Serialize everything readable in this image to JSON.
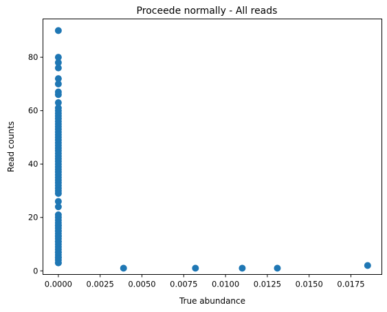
{
  "chart_data": {
    "type": "scatter",
    "title": "Proceede normally - All reads",
    "xlabel": "True abundance",
    "ylabel": "Read counts",
    "xlim": [
      -0.00092,
      0.01935
    ],
    "ylim": [
      -1.35,
      94.35
    ],
    "xticks": [
      0.0,
      0.0025,
      0.005,
      0.0075,
      0.01,
      0.0125,
      0.015,
      0.0175
    ],
    "xtick_labels": [
      "0.0000",
      "0.0025",
      "0.0050",
      "0.0075",
      "0.0100",
      "0.0125",
      "0.0150",
      "0.0175"
    ],
    "yticks": [
      0,
      20,
      40,
      60,
      80
    ],
    "ytick_labels": [
      "0",
      "20",
      "40",
      "60",
      "80"
    ],
    "grid": false,
    "marker_color": "#1f77b4",
    "series": [
      {
        "x": [
          0,
          0,
          0,
          0,
          0,
          0,
          0,
          0,
          0,
          0,
          0,
          0,
          0,
          0,
          0,
          0,
          0,
          0,
          0,
          0,
          0,
          0,
          0,
          0,
          0,
          0,
          0,
          0,
          0,
          0,
          0,
          0,
          0,
          0,
          0,
          0,
          0,
          0,
          0,
          0,
          0,
          0,
          0,
          0,
          0,
          0,
          0,
          0,
          0,
          0,
          0,
          0,
          0,
          0,
          0,
          0,
          0,
          0,
          0,
          0,
          0,
          0,
          0,
          0,
          0,
          0,
          0,
          0,
          0,
          0,
          0.0039,
          0.0082,
          0.011,
          0.0131,
          0.0185
        ],
        "y": [
          90,
          80,
          78,
          76,
          72,
          70,
          67,
          66,
          63,
          61,
          60,
          59,
          58,
          57,
          56,
          55,
          54,
          53,
          52,
          51,
          50,
          49,
          48,
          47,
          46,
          45,
          44,
          43,
          42,
          41,
          40,
          39,
          38,
          37,
          36,
          35,
          34,
          33,
          32,
          31,
          30,
          29,
          26,
          24,
          21,
          20,
          19,
          18,
          17,
          16,
          15,
          14,
          13,
          12,
          11,
          10,
          9,
          8,
          7,
          6,
          5,
          4,
          3,
          3,
          5,
          7,
          11,
          13,
          15,
          17,
          1,
          1,
          1,
          1,
          2
        ]
      }
    ]
  }
}
